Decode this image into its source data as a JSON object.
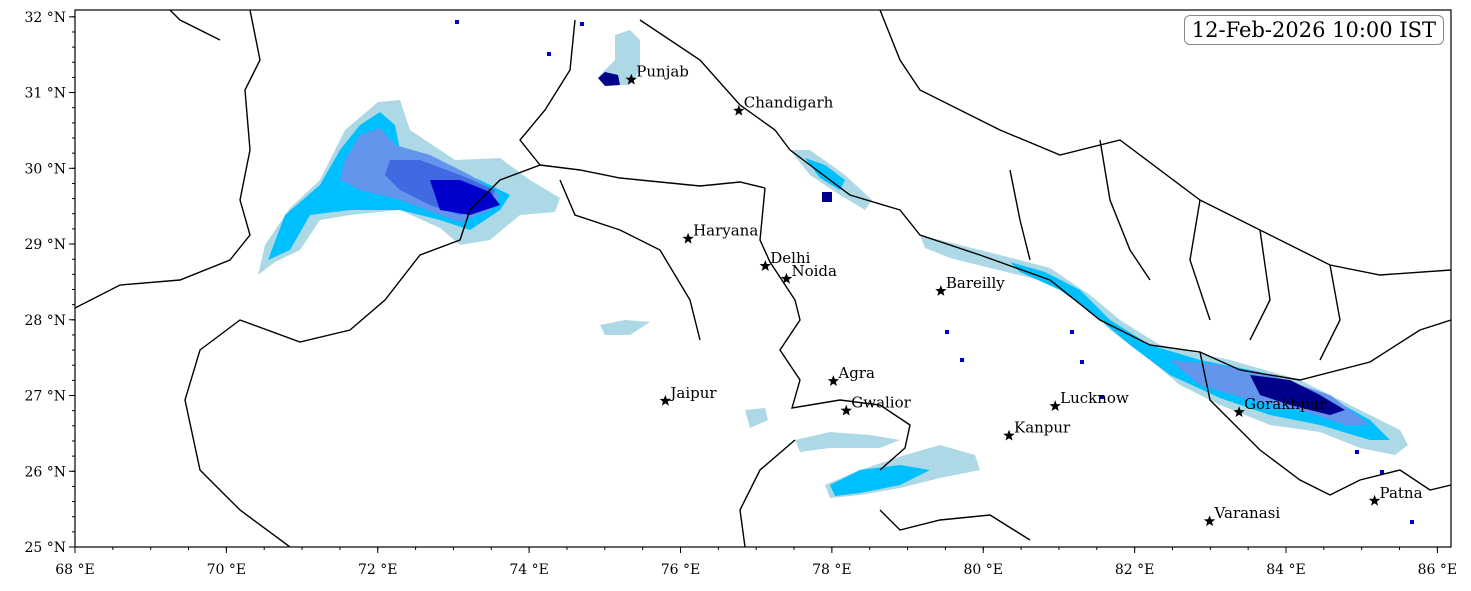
{
  "timestamp": "12-Feb-2026 10:00 IST",
  "chart_data": {
    "type": "map",
    "xlim": [
      68,
      86.18
    ],
    "ylim": [
      25,
      32.09
    ],
    "x_ticks": [
      {
        "value": 68,
        "label": "68 °E"
      },
      {
        "value": 70,
        "label": "70 °E"
      },
      {
        "value": 72,
        "label": "72 °E"
      },
      {
        "value": 74,
        "label": "74 °E"
      },
      {
        "value": 76,
        "label": "76 °E"
      },
      {
        "value": 78,
        "label": "78 °E"
      },
      {
        "value": 80,
        "label": "80 °E"
      },
      {
        "value": 82,
        "label": "82 °E"
      },
      {
        "value": 84,
        "label": "84 °E"
      },
      {
        "value": 86,
        "label": "86 °E"
      }
    ],
    "y_ticks": [
      {
        "value": 25,
        "label": "25 °N"
      },
      {
        "value": 26,
        "label": "26 °N"
      },
      {
        "value": 27,
        "label": "27 °N"
      },
      {
        "value": 28,
        "label": "28 °N"
      },
      {
        "value": 29,
        "label": "29 °N"
      },
      {
        "value": 30,
        "label": "30 °N"
      },
      {
        "value": 31,
        "label": "31 °N"
      },
      {
        "value": 32,
        "label": "32 °N"
      }
    ],
    "precip_colors": [
      "#add8e6",
      "#00bfff",
      "#6495ed",
      "#4169e1",
      "#0000cd",
      "#00008b"
    ],
    "cities": [
      {
        "name": "Punjab",
        "lon": 75.35,
        "lat": 31.17
      },
      {
        "name": "Chandigarh",
        "lon": 76.77,
        "lat": 30.76
      },
      {
        "name": "Haryana",
        "lon": 76.1,
        "lat": 29.07
      },
      {
        "name": "Delhi",
        "lon": 77.12,
        "lat": 28.71
      },
      {
        "name": "Noida",
        "lon": 77.4,
        "lat": 28.54
      },
      {
        "name": "Bareilly",
        "lon": 79.44,
        "lat": 28.38
      },
      {
        "name": "Agra",
        "lon": 78.02,
        "lat": 27.19
      },
      {
        "name": "Gwalior",
        "lon": 78.19,
        "lat": 26.8
      },
      {
        "name": "Jaipur",
        "lon": 75.8,
        "lat": 26.93
      },
      {
        "name": "Lucknow",
        "lon": 80.95,
        "lat": 26.86
      },
      {
        "name": "Kanpur",
        "lon": 80.34,
        "lat": 26.47
      },
      {
        "name": "Gorakhpur",
        "lon": 83.38,
        "lat": 26.78
      },
      {
        "name": "Varanasi",
        "lon": 82.99,
        "lat": 25.34
      },
      {
        "name": "Patna",
        "lon": 85.17,
        "lat": 25.61
      }
    ]
  }
}
